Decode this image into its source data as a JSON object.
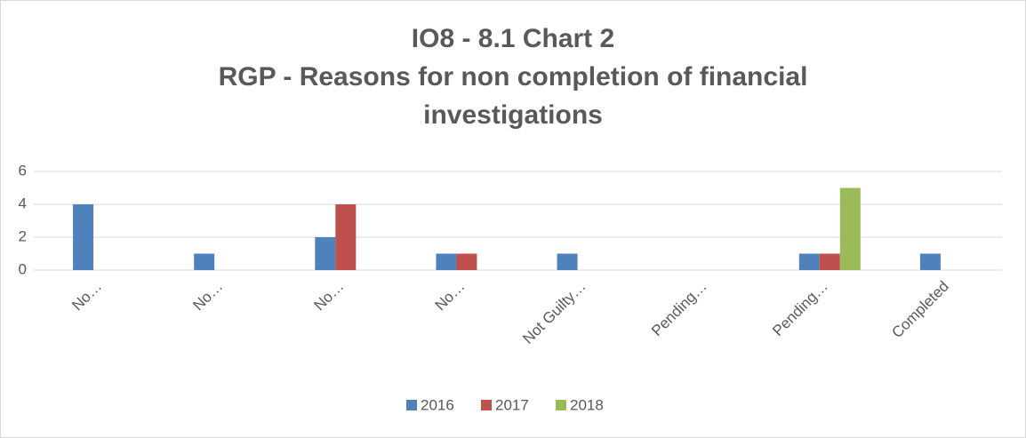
{
  "chart_data": {
    "type": "bar",
    "title": "IO8 - 8.1 Chart 2",
    "subtitle": "RGP - Reasons for non completion of financial investigations",
    "categories": [
      "No…",
      "No…",
      "No…",
      "No…",
      "Not Guilty…",
      "Pending…",
      "Pending…",
      "Completed"
    ],
    "series": [
      {
        "name": "2016",
        "color": "#4f81bd",
        "values": [
          4,
          1,
          2,
          1,
          1,
          0,
          1,
          1
        ]
      },
      {
        "name": "2017",
        "color": "#c0504d",
        "values": [
          0,
          0,
          4,
          1,
          0,
          0,
          1,
          0
        ]
      },
      {
        "name": "2018",
        "color": "#9bbb59",
        "values": [
          0,
          0,
          0,
          0,
          0,
          0,
          5,
          0
        ]
      }
    ],
    "ylim": [
      0,
      6
    ],
    "yticks": [
      0,
      2,
      4,
      6
    ],
    "grid": true,
    "legend": "bottom"
  }
}
